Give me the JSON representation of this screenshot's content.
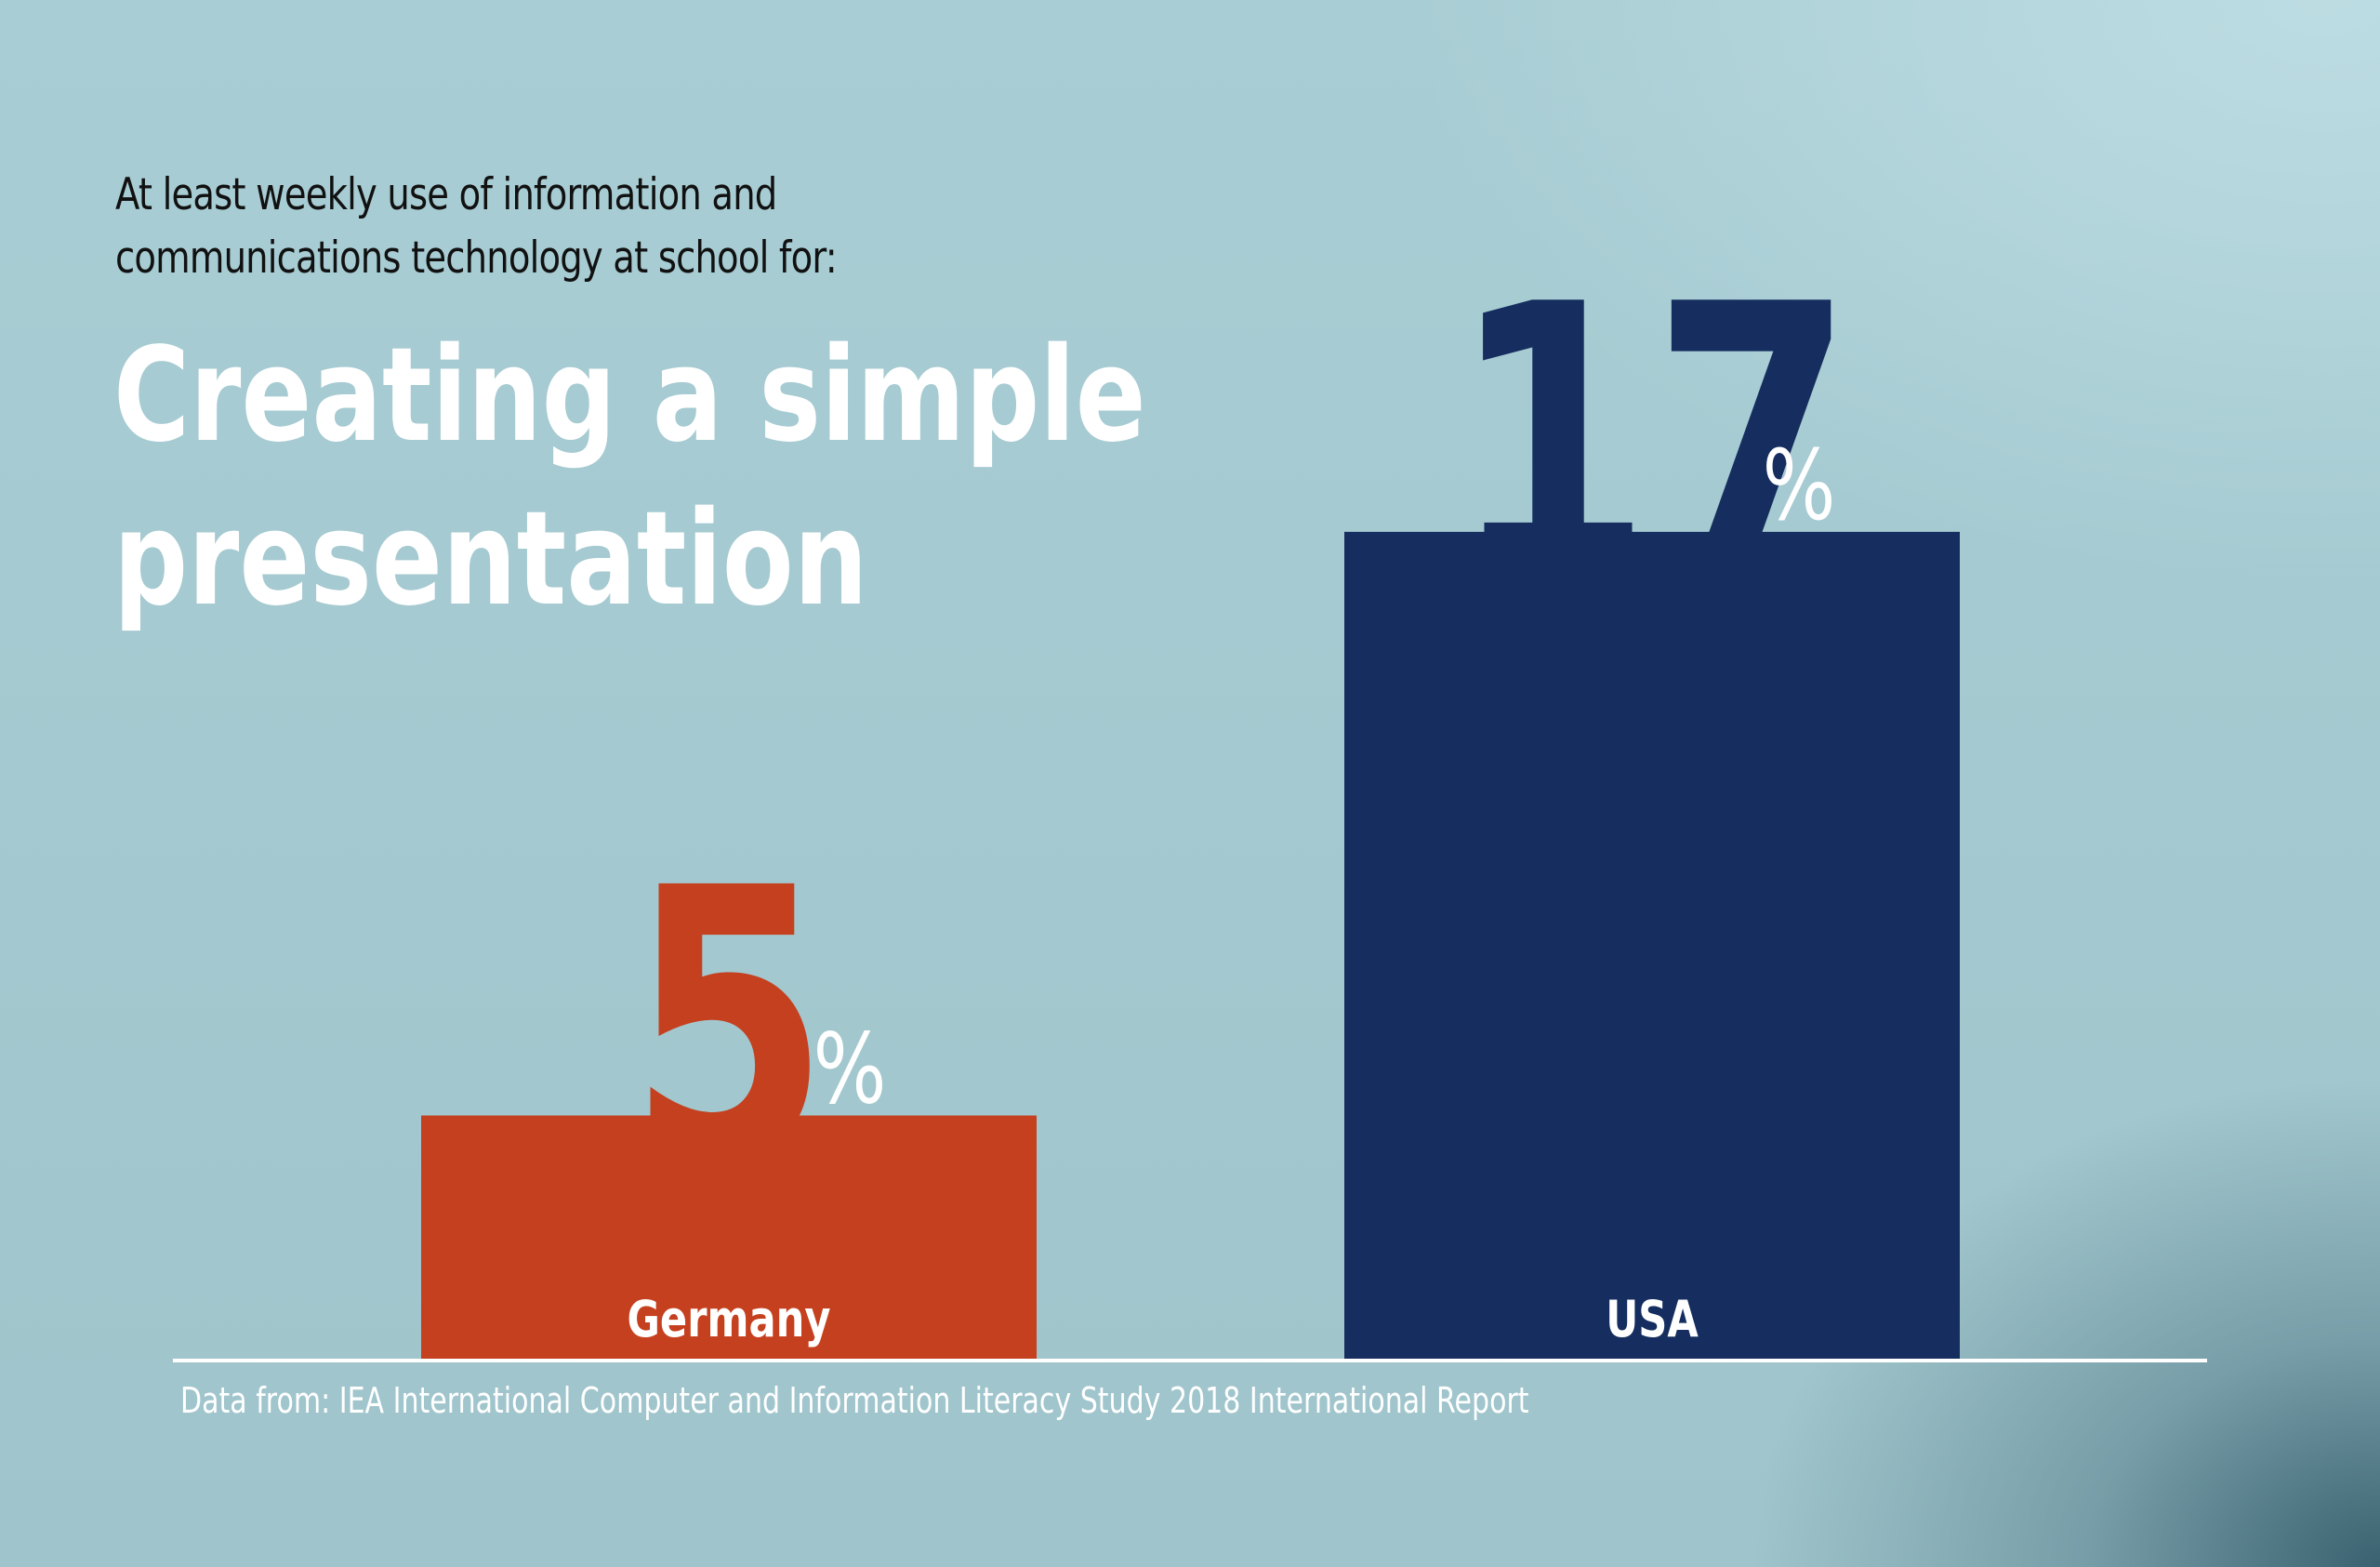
{
  "subtitle_lines": [
    "At least weekly use of information and",
    "communications technology at school for:"
  ],
  "title_lines": [
    "Creating a simple",
    "presentation"
  ],
  "source": "Data from: IEA International Computer and Information Literacy Study 2018 International Report",
  "colors": {
    "germany": "#c5401f",
    "usa": "#152e5f",
    "axis": "#ffffff",
    "percent_sign": "#ffffff"
  },
  "chart_data": {
    "type": "bar",
    "title": "Creating a simple presentation",
    "subtitle": "At least weekly use of information and communications technology at school for:",
    "categories": [
      "Germany",
      "USA"
    ],
    "values": [
      5,
      17
    ],
    "value_labels": [
      "5",
      "17"
    ],
    "unit": "%",
    "xlabel": "",
    "ylabel": "",
    "grid": false,
    "legend": "none"
  }
}
